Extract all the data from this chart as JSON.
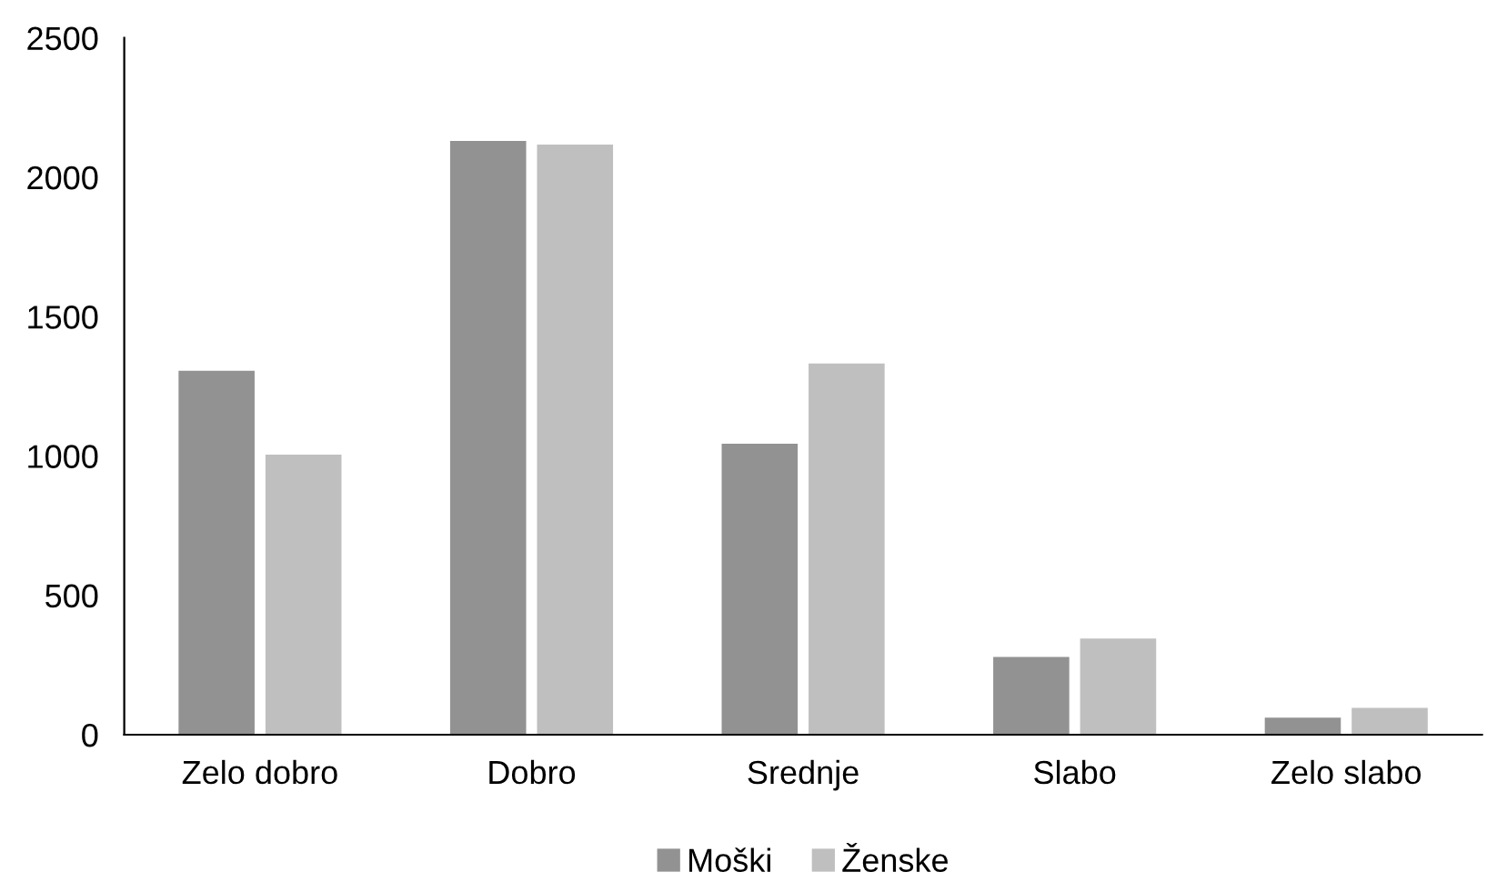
{
  "chart_data": {
    "type": "bar",
    "categories": [
      "Zelo dobro",
      "Dobro",
      "Srednje",
      "Slabo",
      "Zelo slabo"
    ],
    "series": [
      {
        "name": "Moški",
        "color": "#929292",
        "values": [
          1306,
          2130,
          1044,
          279,
          61
        ]
      },
      {
        "name": "Ženske",
        "color": "#bfbfbf",
        "values": [
          1005,
          2117,
          1332,
          345,
          96
        ]
      }
    ],
    "ylim": [
      0,
      2500
    ],
    "yticks": [
      0,
      500,
      1000,
      1500,
      2000,
      2500
    ],
    "grid": false,
    "legend": "bottom"
  }
}
